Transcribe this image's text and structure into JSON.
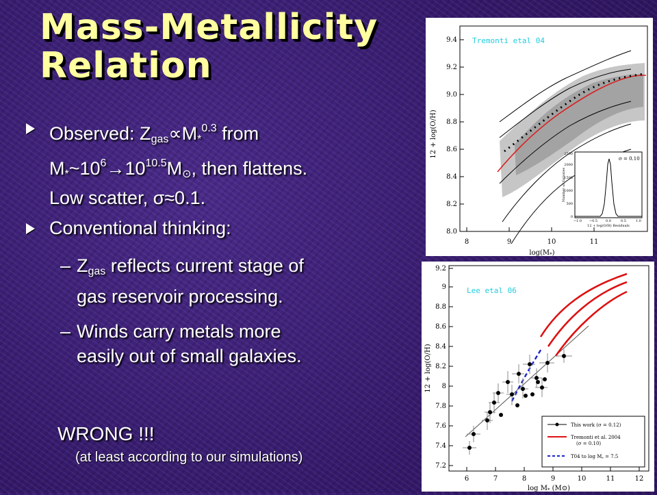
{
  "slide": {
    "title_line1": "Mass-Metallicity",
    "title_line2": "Relation"
  },
  "bullets": [
    {
      "line1_a": "Observed: Z",
      "line1_sub": "gas",
      "line1_b": "∝M",
      "line1_star": "*",
      "line1_sup": "0.3",
      "line1_c": " from",
      "line2_a": "M",
      "line2_star": "*",
      "line2_b": "~10",
      "line2_sup1": "6",
      "line2_arrow": "→",
      "line2_c": "10",
      "line2_sup2": "10.5",
      "line2_d": "M",
      "line2_sun": "⊙",
      "line2_e": ", then flattens.",
      "line3": "Low scatter, σ≈0.1."
    },
    {
      "text": "Conventional thinking:"
    }
  ],
  "sub_items": [
    {
      "dash": "–",
      "pre": "Z",
      "sub": "gas",
      "line1": " reflects current stage of",
      "line2": "gas reservoir processing."
    },
    {
      "dash": "–",
      "line1": "Winds carry metals more",
      "line2": "easily out of small galaxies."
    }
  ],
  "conclusion": {
    "wrong": "WRONG !!!",
    "note": "(at least according to our simulations)"
  },
  "figures": {
    "top": {
      "citation": "Tremonti etal 04",
      "y_ticks": [
        "8.0",
        "8.2",
        "8.4",
        "8.6",
        "8.8",
        "9.0",
        "9.2",
        "9.4"
      ],
      "x_ticks": [
        "8",
        "9",
        "10",
        "11"
      ],
      "ylabel": "12 + log(O/H)",
      "xlabel": "log(M",
      "xlabel_sub": "*",
      "xlabel_end": ")",
      "inset": {
        "sigma": "σ = 0.10",
        "ylabel": "Number of Galaxies",
        "xlabel": "12 + log(O/H) Residuals",
        "y_ticks": [
          "0",
          "500",
          "1000",
          "1500",
          "2000",
          "2500"
        ],
        "x_ticks": [
          "−1.0",
          "−0.5",
          "0.0",
          "0.5",
          "1.0"
        ]
      }
    },
    "bottom": {
      "citation": "Lee etal 06",
      "y_ticks": [
        "7.2",
        "7.4",
        "7.6",
        "7.8",
        "8",
        "8.2",
        "8.4",
        "8.6",
        "8.8",
        "9",
        "9.2"
      ],
      "x_ticks": [
        "6",
        "7",
        "8",
        "9",
        "10",
        "11",
        "12"
      ],
      "ylabel": "12 + log(O/H)",
      "xlabel": "log M",
      "xlabel_sub": "*",
      "xlabel_unit": " (M⊙)",
      "legend": [
        {
          "label": "This work (σ = 0.12)",
          "style": "dot-line",
          "color": "#000000"
        },
        {
          "label": "Tremonti et al. 2004",
          "style": "solid",
          "color": "#dd1111",
          "note": "(σ = 0.10)"
        },
        {
          "label": "T04 to log M",
          "sub": "*",
          "tail": " = 7.5",
          "style": "dashed",
          "color": "#1a22cc"
        }
      ]
    }
  }
}
